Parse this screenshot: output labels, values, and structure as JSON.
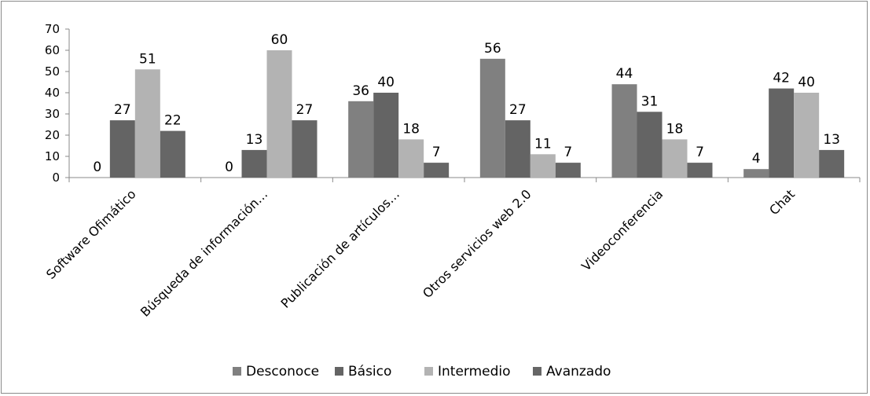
{
  "chart_data": {
    "type": "bar",
    "title": "",
    "xlabel": "",
    "ylabel": "",
    "ylim": [
      0,
      70
    ],
    "yticks": [
      0,
      10,
      20,
      30,
      40,
      50,
      60,
      70
    ],
    "grid": false,
    "legend_position": "bottom",
    "categories": [
      "Software Ofimático",
      "Búsqueda de información…",
      "Publicación de artículos…",
      "Otros servicios web 2.0",
      "Videoconferencia",
      "Chat"
    ],
    "series": [
      {
        "name": "Desconoce",
        "color": "#808080",
        "values": [
          0,
          0,
          36,
          56,
          44,
          4
        ]
      },
      {
        "name": "Básico",
        "color": "#646464",
        "values": [
          27,
          13,
          40,
          27,
          31,
          42
        ]
      },
      {
        "name": "Intermedio",
        "color": "#b3b3b3",
        "values": [
          51,
          60,
          18,
          11,
          18,
          40
        ]
      },
      {
        "name": "Avanzado",
        "color": "#666666",
        "values": [
          22,
          27,
          7,
          7,
          7,
          13
        ]
      }
    ]
  }
}
